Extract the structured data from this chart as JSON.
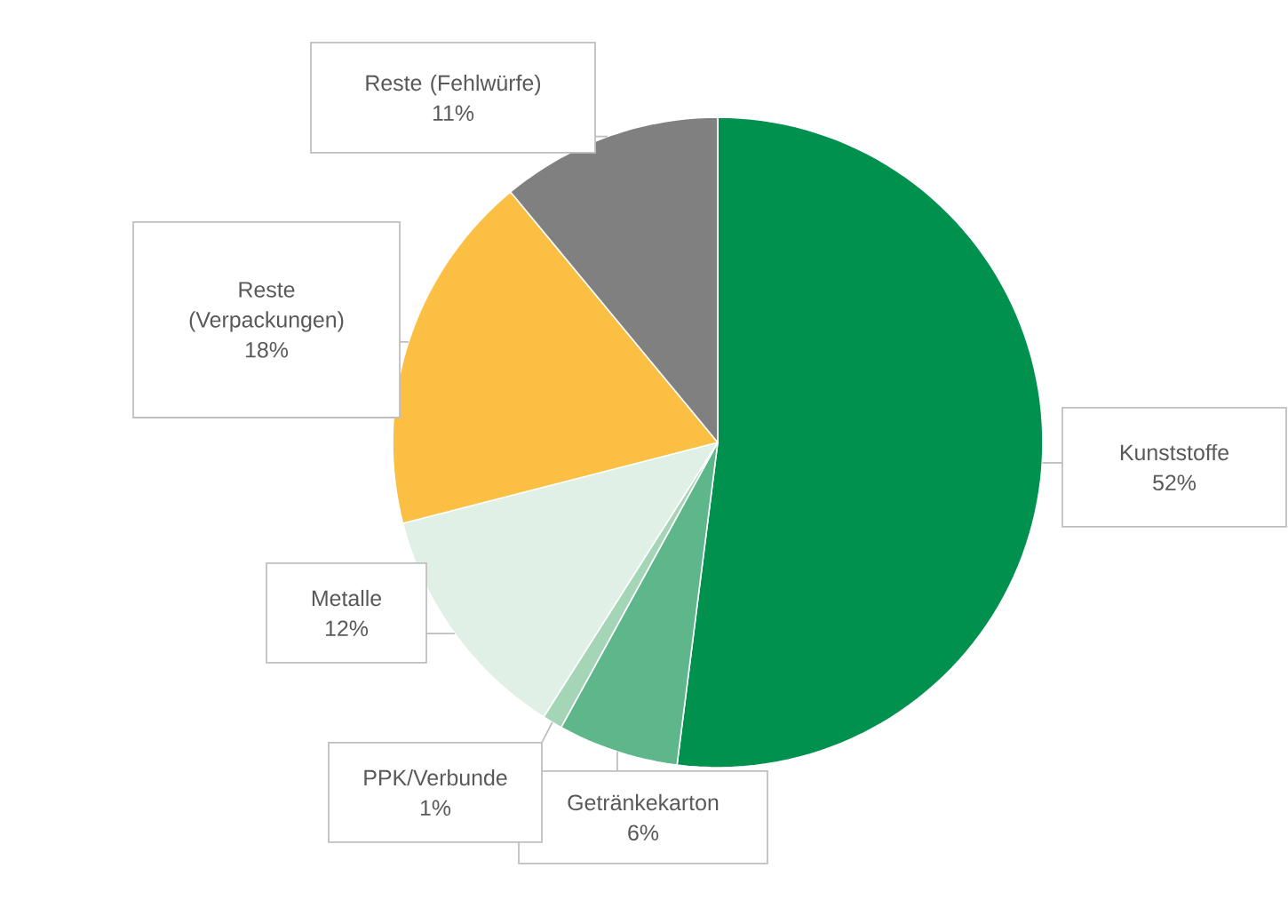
{
  "chart_data": {
    "type": "pie",
    "categories": [
      "Kunststoffe",
      "Getränkekarton",
      "PPK/Verbunde",
      "Metalle",
      "Reste (Verpackungen)",
      "Reste (Fehlwürfe)"
    ],
    "values": [
      52,
      6,
      1,
      12,
      18,
      11
    ],
    "colors": [
      "#00914f",
      "#5db78a",
      "#a3d5b6",
      "#e0f0e6",
      "#fbbf44",
      "#808080"
    ],
    "value_labels": [
      "52%",
      "6%",
      "1%",
      "12%",
      "18%",
      "11%"
    ]
  }
}
